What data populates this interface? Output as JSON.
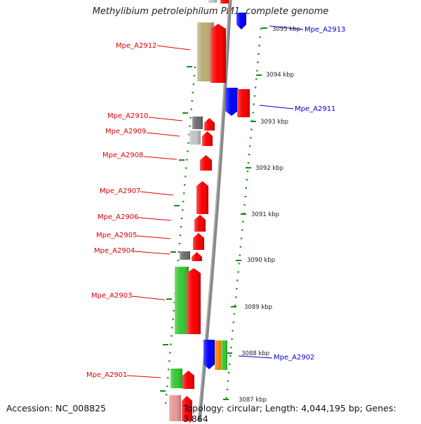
{
  "title": "Methylibium petroleiphilum PM1, complete genome",
  "footer": {
    "accession": "Accession: NC_008825",
    "topology": "Topology: circular; Length: 4,044,195 bp; Genes: 3,864"
  },
  "colors": {
    "forward_gene": "#ff0000",
    "reverse_gene": "#0000ff",
    "label_forward": "#e00000",
    "label_reverse": "#0000cc",
    "tick": "#1a8a1a",
    "backbone": "#888888",
    "gc_green": "#33cc33",
    "tan": "#bdb076",
    "gray_dark": "#6e6e6e",
    "gray_light": "#c8c8c8",
    "orange": "#ff8800",
    "pink": "#ee9999"
  },
  "scale_labels": [
    "3095 kbp",
    "3094 kbp",
    "3093 kbp",
    "3092 kbp",
    "3091 kbp",
    "3090 kbp",
    "3089 kbp",
    "3088 kbp",
    "3087 kbp"
  ],
  "gene_labels_left": [
    "Mpe_A2912",
    "Mpe_A2910",
    "Mpe_A2909",
    "Mpe_A2908",
    "Mpe_A2907",
    "Mpe_A2906",
    "Mpe_A2905",
    "Mpe_A2904",
    "Mpe_A2903",
    "Mpe_A2901"
  ],
  "gene_labels_right": [
    "Mpe_A2913",
    "Mpe_A2911",
    "Mpe_A2902"
  ]
}
